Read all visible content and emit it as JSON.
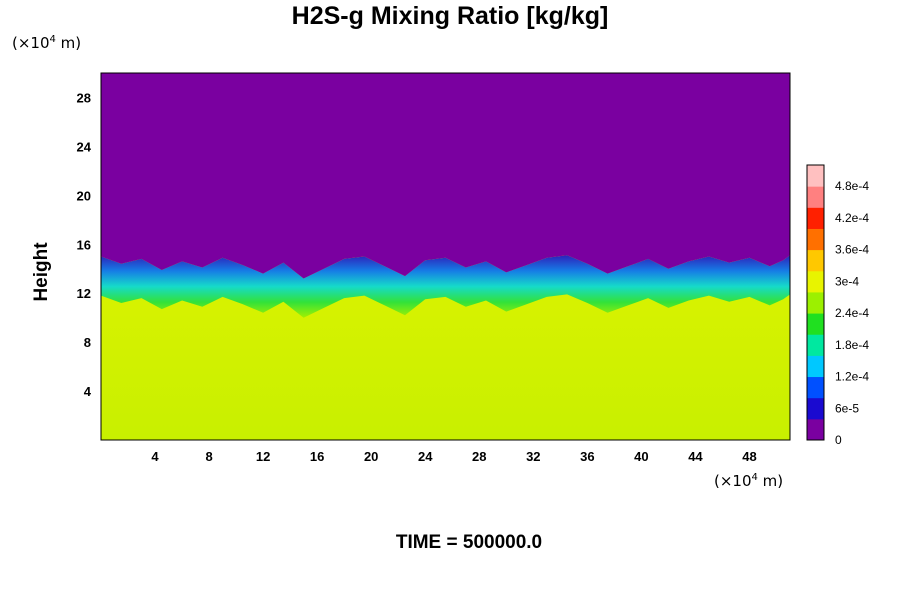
{
  "title": "H2S-g Mixing Ratio [kg/kg]",
  "time_label": "TIME = 500000.0",
  "chart_data": {
    "type": "heatmap",
    "title": "H2S-g Mixing Ratio [kg/kg]",
    "xlabel": "",
    "ylabel": "Height",
    "x_unit": {
      "prefix": "(×10",
      "exp": "4",
      "suffix": " m)"
    },
    "y_unit": {
      "prefix": "(×10",
      "exp": "4",
      "suffix": " m)"
    },
    "xlim": [
      0,
      51
    ],
    "ylim": [
      0,
      30
    ],
    "x_ticks": [
      4,
      8,
      12,
      16,
      20,
      24,
      28,
      32,
      36,
      40,
      44,
      48
    ],
    "y_ticks": [
      4,
      8,
      12,
      16,
      20,
      24,
      28
    ],
    "colorbar": {
      "ticks": [
        0,
        6e-05,
        0.00012,
        0.00018,
        0.00024,
        0.0003,
        0.00036,
        0.00042,
        0.00048
      ],
      "tick_labels": [
        "0",
        "6e-5",
        "1.2e-4",
        "1.8e-4",
        "2.4e-4",
        "3e-4",
        "3.6e-4",
        "4.2e-4",
        "4.8e-4"
      ],
      "range": [
        0,
        0.00052
      ],
      "colors": [
        "#7a00a0",
        "#1a0ad0",
        "#0050ff",
        "#00c8ff",
        "#00e8a0",
        "#20e020",
        "#9cf000",
        "#e8f400",
        "#ffc800",
        "#ff7000",
        "#ff2000",
        "#ff8080",
        "#ffc0c0"
      ]
    },
    "background_value": 0.00033,
    "upper_value": 0,
    "interface_height": [
      15.0,
      14.4,
      14.8,
      13.9,
      14.6,
      14.1,
      14.9,
      14.3,
      13.6,
      14.5,
      13.2,
      14.0,
      14.8,
      15.0,
      14.2,
      13.4,
      14.7,
      14.9,
      14.1,
      14.6,
      13.7,
      14.3,
      14.9,
      15.1,
      14.4,
      13.6,
      14.2,
      14.8,
      14.0,
      14.6,
      15.0,
      14.5,
      14.9,
      14.2,
      14.7,
      15.1
    ],
    "interface_x": [
      0,
      1.5,
      3,
      4.5,
      6,
      7.5,
      9,
      10.5,
      12,
      13.5,
      15,
      16.5,
      18,
      19.5,
      21,
      22.5,
      24,
      25.5,
      27,
      28.5,
      30,
      31.5,
      33,
      34.5,
      36,
      37.5,
      39,
      40.5,
      42,
      43.5,
      45,
      46.5,
      48,
      49.5,
      50.5,
      51
    ]
  }
}
